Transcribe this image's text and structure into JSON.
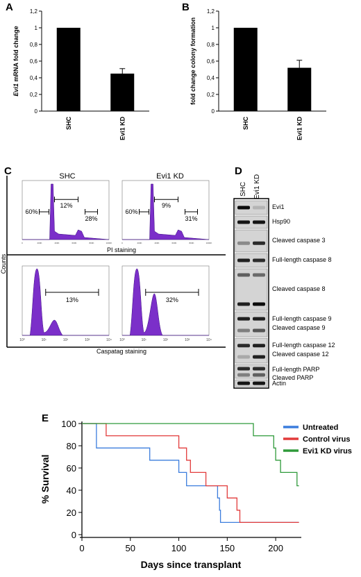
{
  "panels": {
    "A": "A",
    "B": "B",
    "C": "C",
    "D": "D",
    "E": "E"
  },
  "chart_data": [
    {
      "id": "A",
      "type": "bar",
      "categories": [
        "SHC",
        "Evi1 KD"
      ],
      "values": [
        1.0,
        0.45
      ],
      "errors": [
        0.0,
        0.06
      ],
      "ylabel_italic": "Evi1",
      "ylabel_rest": " mRNA fold change",
      "ylim": [
        0,
        1.2
      ],
      "yticks": [
        "0",
        "0,2",
        "0,4",
        "0,6",
        "0,8",
        "1",
        "1,2"
      ],
      "bar_color": "#000000"
    },
    {
      "id": "B",
      "type": "bar",
      "categories": [
        "SHC",
        "Evi1 KD"
      ],
      "values": [
        1.0,
        0.52
      ],
      "errors": [
        0.0,
        0.09
      ],
      "ylabel": "fold change colony formation",
      "ylim": [
        0,
        1.2
      ],
      "yticks": [
        "0",
        "0,2",
        "0,4",
        "0,6",
        "0,8",
        "1",
        "1,2"
      ],
      "bar_color": "#000000"
    },
    {
      "id": "C",
      "type": "histogram",
      "columns": [
        "SHC",
        "Evi1 KD"
      ],
      "pi_gates": [
        [
          "60%",
          "12%",
          "28%"
        ],
        [
          "60%",
          "9%",
          "31%"
        ]
      ],
      "pi_xlabel": "PI staining",
      "caspatag_gates": [
        "13%",
        "32%"
      ],
      "caspatag_xlabel": "Caspatag staining",
      "ylabel": "Counts",
      "fill_color": "#7b2fc9"
    },
    {
      "id": "E",
      "type": "line",
      "ylabel": "% Survival",
      "xlabel": "Days since transplant",
      "xlim": [
        0,
        225
      ],
      "ylim": [
        0,
        100
      ],
      "xticks": [
        0,
        50,
        100,
        150,
        200
      ],
      "yticks": [
        0,
        20,
        40,
        60,
        80,
        100
      ],
      "series": [
        {
          "name": "Untreated",
          "color": "#3b7ddd",
          "points": [
            [
              0,
              100
            ],
            [
              15,
              100
            ],
            [
              15,
              78
            ],
            [
              70,
              78
            ],
            [
              70,
              67
            ],
            [
              100,
              67
            ],
            [
              100,
              56
            ],
            [
              108,
              56
            ],
            [
              108,
              44
            ],
            [
              140,
              44
            ],
            [
              140,
              33
            ],
            [
              142,
              33
            ],
            [
              142,
              22
            ],
            [
              143,
              22
            ],
            [
              143,
              11
            ],
            [
              224,
              11
            ]
          ]
        },
        {
          "name": "Control virus",
          "color": "#e23b3b",
          "points": [
            [
              0,
              100
            ],
            [
              25,
              100
            ],
            [
              25,
              89
            ],
            [
              100,
              89
            ],
            [
              100,
              78
            ],
            [
              108,
              78
            ],
            [
              108,
              67
            ],
            [
              112,
              67
            ],
            [
              112,
              56
            ],
            [
              128,
              56
            ],
            [
              128,
              44
            ],
            [
              150,
              44
            ],
            [
              150,
              33
            ],
            [
              160,
              33
            ],
            [
              160,
              22
            ],
            [
              163,
              22
            ],
            [
              163,
              11
            ],
            [
              224,
              11
            ]
          ]
        },
        {
          "name": "Evi1 KD virus",
          "color": "#2f9a3a",
          "points": [
            [
              0,
              100
            ],
            [
              177,
              100
            ],
            [
              177,
              89
            ],
            [
              198,
              89
            ],
            [
              198,
              78
            ],
            [
              200,
              78
            ],
            [
              200,
              67
            ],
            [
              205,
              67
            ],
            [
              205,
              56
            ],
            [
              222,
              56
            ],
            [
              222,
              44
            ],
            [
              224,
              44
            ]
          ]
        }
      ]
    }
  ],
  "blot": {
    "columns": [
      "SHC",
      "Evi1 KD"
    ],
    "labels": [
      "Evi1",
      "Hsp90",
      "Cleaved caspase 3",
      "Full-length caspase 8",
      "Cleaved caspase 8",
      "Full-length caspase 9",
      "Cleaved caspase 9",
      "Full-length caspase 12",
      "Cleaved caspase 12",
      "Full-length PARP",
      "Cleaved PARP",
      "Actin"
    ]
  }
}
